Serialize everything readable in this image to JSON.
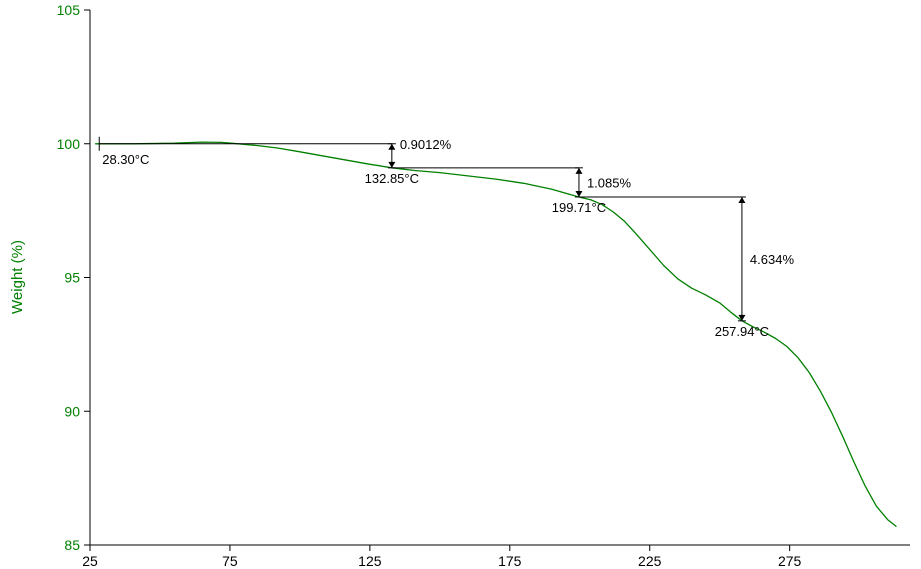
{
  "chart_data": {
    "type": "line",
    "title": "",
    "xlabel": "",
    "ylabel": "Weight (%)",
    "xlim": [
      25,
      318
    ],
    "ylim": [
      85,
      105
    ],
    "x_ticks": [
      25,
      75,
      125,
      175,
      225,
      275
    ],
    "y_ticks": [
      85,
      90,
      95,
      100,
      105
    ],
    "grid": false,
    "legend": "none",
    "colors": {
      "series": "#008000",
      "axis": "#000000",
      "axis_label": "#008000",
      "tick_label_x": "#000000",
      "annotation": "#000000"
    },
    "series": [
      {
        "name": "weight-percent",
        "x": [
          27,
          40,
          55,
          65,
          72,
          78,
          85,
          92,
          100,
          108,
          116,
          124,
          132.85,
          141,
          150,
          160,
          170,
          180,
          190,
          199.71,
          204,
          208,
          212,
          216,
          220,
          225,
          230,
          235,
          240,
          245,
          250,
          254,
          257.94,
          262,
          266,
          270,
          274,
          278,
          282,
          286,
          290,
          294,
          298,
          302,
          306,
          310,
          313
        ],
        "y": [
          100.0,
          100.0,
          100.02,
          100.06,
          100.05,
          100.0,
          99.93,
          99.84,
          99.7,
          99.55,
          99.4,
          99.25,
          99.1,
          99.0,
          98.92,
          98.8,
          98.68,
          98.52,
          98.3,
          98.01,
          97.9,
          97.72,
          97.45,
          97.1,
          96.65,
          96.05,
          95.45,
          94.95,
          94.6,
          94.35,
          94.05,
          93.7,
          93.38,
          93.15,
          92.95,
          92.72,
          92.42,
          92.0,
          91.45,
          90.75,
          89.95,
          89.05,
          88.1,
          87.2,
          86.45,
          85.95,
          85.7
        ]
      }
    ],
    "annotations": [
      {
        "x_start": 28.3,
        "w_start": 100.0,
        "x_end": 132.85,
        "w_end": 99.1,
        "start_label": "28.30°C",
        "end_label": "132.85°C",
        "loss_label": "0.9012%",
        "loss_label_pos": "top",
        "start_tick": true
      },
      {
        "x_start": 132.85,
        "w_start": 99.1,
        "x_end": 199.71,
        "w_end": 98.01,
        "start_label": "",
        "end_label": "199.71°C",
        "loss_label": "1.085%",
        "loss_label_pos": "mid",
        "start_tick": false
      },
      {
        "x_start": 199.71,
        "w_start": 98.01,
        "x_end": 257.94,
        "w_end": 93.38,
        "start_label": "",
        "end_label": "257.94°C",
        "loss_label": "4.634%",
        "loss_label_pos": "mid",
        "start_tick": false
      }
    ]
  }
}
